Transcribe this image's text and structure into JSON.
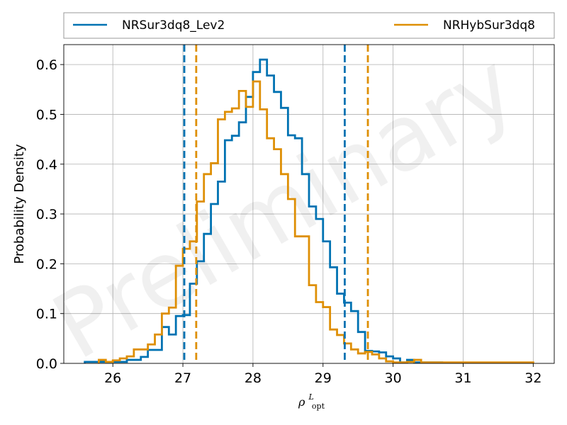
{
  "chart_data": {
    "type": "histogram",
    "watermark": "Preliminary",
    "xlabel": "ρ",
    "xlabel_sup": "L",
    "xlabel_sub": "opt",
    "ylabel": "Probability Density",
    "xlim": [
      25.3,
      32.3
    ],
    "ylim": [
      0,
      0.64
    ],
    "xticks": [
      "26",
      "27",
      "28",
      "29",
      "30",
      "31",
      "32"
    ],
    "yticks": [
      "0.0",
      "0.1",
      "0.2",
      "0.3",
      "0.4",
      "0.5",
      "0.6"
    ],
    "grid": true,
    "legend_position": "top, outside plot, two columns",
    "bin_width": 0.1,
    "series": [
      {
        "name": "NRSur3dq8_Lev2",
        "color": "#0072b2",
        "bin_start": 25.6,
        "density": [
          0.003,
          0.003,
          0.003,
          0.003,
          0.003,
          0.003,
          0.007,
          0.007,
          0.013,
          0.027,
          0.027,
          0.073,
          0.058,
          0.095,
          0.097,
          0.16,
          0.205,
          0.26,
          0.32,
          0.365,
          0.448,
          0.457,
          0.484,
          0.535,
          0.585,
          0.61,
          0.578,
          0.545,
          0.513,
          0.458,
          0.452,
          0.38,
          0.315,
          0.29,
          0.245,
          0.193,
          0.14,
          0.122,
          0.105,
          0.063,
          0.025,
          0.024,
          0.022,
          0.014,
          0.01,
          0.002,
          0.007,
          0.002,
          0.002,
          0.002,
          0.002
        ],
        "interval": [
          27.02,
          29.31
        ]
      },
      {
        "name": "NRHybSur3dq8",
        "color": "#de8f05",
        "bin_start": 25.8,
        "density": [
          0.007,
          0.003,
          0.006,
          0.01,
          0.014,
          0.028,
          0.028,
          0.038,
          0.058,
          0.1,
          0.112,
          0.196,
          0.23,
          0.245,
          0.325,
          0.38,
          0.402,
          0.49,
          0.505,
          0.512,
          0.547,
          0.515,
          0.566,
          0.51,
          0.452,
          0.43,
          0.38,
          0.33,
          0.255,
          0.255,
          0.157,
          0.123,
          0.113,
          0.068,
          0.057,
          0.04,
          0.028,
          0.02,
          0.023,
          0.018,
          0.01,
          0.004,
          0.002,
          0.002,
          0.003,
          0.007,
          0.002,
          0.002,
          0.002,
          0.002,
          0.002,
          0.002,
          0.002,
          0.002,
          0.002,
          0.002,
          0.002,
          0.002,
          0.002,
          0.002,
          0.002,
          0.002
        ],
        "interval": [
          27.19,
          29.64
        ]
      }
    ]
  }
}
